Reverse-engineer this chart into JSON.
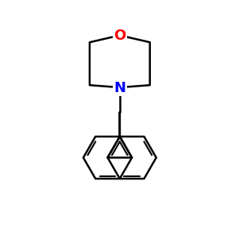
{
  "background": "#ffffff",
  "figsize": [
    3.0,
    3.0
  ],
  "dpi": 100,
  "line_color": "#000000",
  "line_width": 1.8,
  "N_color": "#0000ff",
  "O_color": "#ff0000",
  "font_size": 13
}
